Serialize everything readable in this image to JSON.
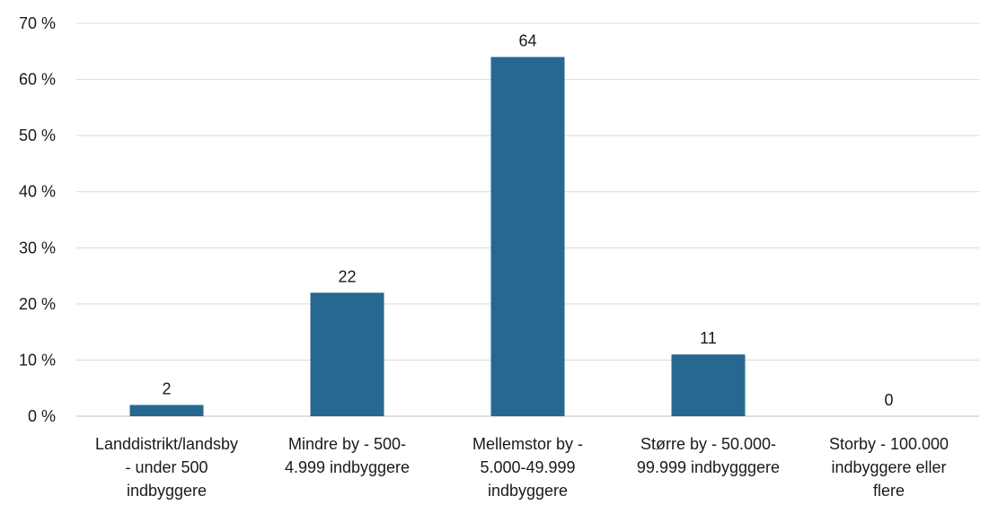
{
  "chart_data": {
    "type": "bar",
    "title": "",
    "xlabel": "",
    "ylabel": "",
    "categories": [
      [
        "Landdistrikt/landsby",
        "- under 500",
        "indbyggere"
      ],
      [
        "Mindre by - 500-",
        "4.999 indbyggere"
      ],
      [
        "Mellemstor by -",
        "5.000-49.999",
        "indbyggere"
      ],
      [
        "Større by - 50.000-",
        "99.999 indbygggere"
      ],
      [
        "Storby - 100.000",
        "indbyggere eller",
        "flere"
      ]
    ],
    "values": [
      2,
      22,
      64,
      11,
      0
    ],
    "data_labels": [
      "2",
      "22",
      "64",
      "11",
      "0"
    ],
    "ylim": [
      0,
      70
    ],
    "yticks": [
      0,
      10,
      20,
      30,
      40,
      50,
      60,
      70
    ],
    "ytick_labels": [
      "0 %",
      "10 %",
      "20 %",
      "30 %",
      "40 %",
      "50 %",
      "60 %",
      "70 %"
    ],
    "grid": true,
    "legend": "none",
    "bar_color": "#276890",
    "grid_color": "#d9d9d9"
  }
}
